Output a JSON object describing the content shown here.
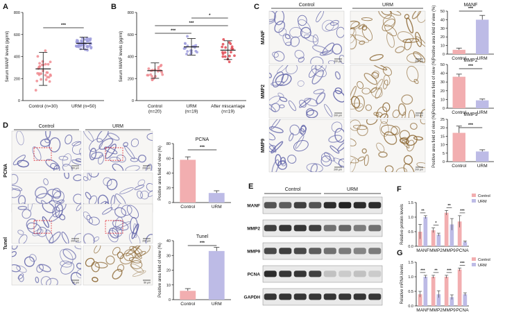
{
  "colors": {
    "control": "#f2aeb0",
    "urm": "#bdbbe6",
    "after": "#ec7f84",
    "control_dot": "#f08c92",
    "urm_dot": "#9f9ddd",
    "after_dot": "#e04a54",
    "blot_band": "#222222",
    "tissue_blue": "#5f62a8",
    "tissue_brown": "#8a6530"
  },
  "panel_letters": [
    "A",
    "B",
    "C",
    "D",
    "E",
    "F",
    "G"
  ],
  "scale_bars": {
    "low": "200 μm",
    "high": "50 μm"
  },
  "chart_data": [
    {
      "id": "A",
      "type": "scatter",
      "ylabel": "Serum MANF levels (pg/ml)",
      "ylim": [
        0,
        800
      ],
      "yticks": [
        "0",
        "200",
        "400",
        "600",
        "800"
      ],
      "categories": [
        "Control (n=30)",
        "URM (n=50)"
      ],
      "means": [
        288,
        520
      ],
      "sd": [
        150,
        55
      ],
      "significance": [
        {
          "pair": [
            0,
            1
          ],
          "label": "***"
        }
      ]
    },
    {
      "id": "B",
      "type": "scatter",
      "ylabel": "Serum MANF levels (pg/ml)",
      "ylim": [
        0,
        800
      ],
      "yticks": [
        "0",
        "200",
        "400",
        "600",
        "800"
      ],
      "categories": [
        "Control\n(n=20)",
        "URM\n(n=19)",
        "After miscarriage\n(n=19)"
      ],
      "means": [
        272,
        488,
        458
      ],
      "sd": [
        70,
        75,
        85
      ],
      "significance": [
        {
          "pair": [
            0,
            1
          ],
          "label": "***"
        },
        {
          "pair": [
            0,
            2
          ],
          "label": "***"
        },
        {
          "pair": [
            1,
            2
          ],
          "label": "*"
        }
      ]
    },
    {
      "id": "C-MANF",
      "type": "bar",
      "title": "MANF",
      "ylabel": "Positive area field of view (%)",
      "ylim": [
        0,
        50
      ],
      "yticks": [
        "0",
        "10",
        "20",
        "30",
        "40",
        "50"
      ],
      "categories": [
        "Control",
        "URM"
      ],
      "values": [
        5,
        40
      ],
      "errors": [
        2,
        5
      ],
      "significance": "***"
    },
    {
      "id": "C-MMP2",
      "type": "bar",
      "title": "MMP2",
      "ylabel": "Positive area field of view (%)",
      "ylim": [
        0,
        50
      ],
      "yticks": [
        "0",
        "10",
        "20",
        "30",
        "40",
        "50"
      ],
      "categories": [
        "Control",
        "URM"
      ],
      "values": [
        36,
        9
      ],
      "errors": [
        3,
        1.5
      ],
      "significance": "***"
    },
    {
      "id": "C-MMP9",
      "type": "bar",
      "title": "MMP9",
      "ylabel": "Positive area field of view (%)",
      "ylim": [
        0,
        25
      ],
      "yticks": [
        "0",
        "5",
        "10",
        "15",
        "20",
        "25"
      ],
      "categories": [
        "Control",
        "URM"
      ],
      "values": [
        17,
        6
      ],
      "errors": [
        4,
        1
      ],
      "significance": "***"
    },
    {
      "id": "D-PCNA",
      "type": "bar",
      "title": "PCNA",
      "ylabel": "Positive area field of view (%)",
      "ylim": [
        0,
        80
      ],
      "yticks": [
        "0",
        "20",
        "40",
        "60",
        "80"
      ],
      "categories": [
        "Control",
        "URM"
      ],
      "values": [
        58,
        13
      ],
      "errors": [
        4,
        3
      ],
      "significance": "***"
    },
    {
      "id": "D-Tunel",
      "type": "bar",
      "title": "Tunel",
      "ylabel": "Positive area field of view (%)",
      "ylim": [
        0,
        40
      ],
      "yticks": [
        "0",
        "10",
        "20",
        "30",
        "40"
      ],
      "categories": [
        "Control",
        "URM"
      ],
      "values": [
        6,
        33
      ],
      "errors": [
        1.5,
        2.5
      ],
      "significance": "***"
    },
    {
      "id": "F",
      "type": "bar",
      "ylabel": "Relative protein levels",
      "ylim": [
        0,
        1.5
      ],
      "yticks": [
        "0.0",
        "0.5",
        "1.0",
        "1.5"
      ],
      "categories": [
        "MANF",
        "MMP2",
        "MMP9",
        "PCNA"
      ],
      "series": [
        {
          "name": "Control",
          "values": [
            0.5,
            0.55,
            1.15,
            0.85
          ],
          "errors": [
            0.25,
            0.08,
            0.08,
            0.2
          ]
        },
        {
          "name": "URM",
          "values": [
            1.0,
            0.4,
            0.75,
            0.15
          ],
          "errors": [
            0.05,
            0.05,
            0.2,
            0.03
          ]
        }
      ],
      "significance": [
        "**",
        "*",
        "**",
        "***"
      ]
    },
    {
      "id": "G",
      "type": "bar",
      "ylabel": "Relative mRNA levels",
      "ylim": [
        0,
        1.5
      ],
      "yticks": [
        "0.0",
        "0.5",
        "1.0",
        "1.5"
      ],
      "categories": [
        "MANF",
        "MMP2",
        "MMP9",
        "PCNA"
      ],
      "series": [
        {
          "name": "Control",
          "values": [
            0.4,
            1.0,
            1.0,
            1.25
          ],
          "errors": [
            0.1,
            0.05,
            0.05,
            0.05
          ]
        },
        {
          "name": "URM",
          "values": [
            1.0,
            0.4,
            0.3,
            0.4
          ],
          "errors": [
            0.05,
            0.12,
            0.08,
            0.05
          ]
        }
      ],
      "significance": [
        "***",
        "**",
        "***",
        "***"
      ]
    }
  ],
  "panel_c": {
    "columns": [
      "Control",
      "URM"
    ],
    "rows": [
      "MANF",
      "MMP2",
      "MMP9"
    ]
  },
  "panel_d": {
    "columns": [
      "Control",
      "URM"
    ],
    "rows": [
      "PCNA",
      "Tunel"
    ]
  },
  "panel_e": {
    "groups": [
      "Control",
      "URM"
    ],
    "rows": [
      "MANF",
      "MMP2",
      "MMP9",
      "PCNA",
      "GAPDH"
    ],
    "lanes_per_group": 4,
    "intensity": [
      [
        0.75,
        0.7,
        0.85,
        0.75,
        0.95,
        1.0,
        0.95,
        0.95
      ],
      [
        0.85,
        0.9,
        0.9,
        0.85,
        0.6,
        0.65,
        0.55,
        0.6
      ],
      [
        0.8,
        0.85,
        0.8,
        0.7,
        0.6,
        0.55,
        0.5,
        0.55
      ],
      [
        0.95,
        0.9,
        0.9,
        0.85,
        0.2,
        0.15,
        0.2,
        0.15
      ],
      [
        0.9,
        0.9,
        0.9,
        0.9,
        0.9,
        0.9,
        0.9,
        0.9
      ]
    ]
  }
}
